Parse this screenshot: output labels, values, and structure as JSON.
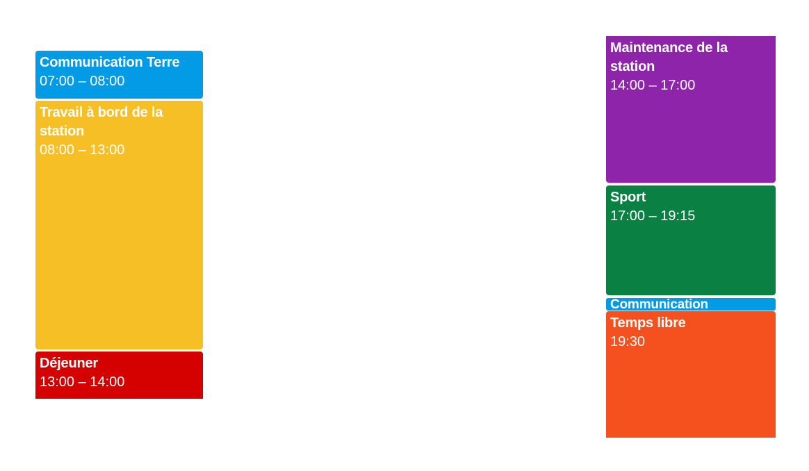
{
  "events": {
    "communication_terre": {
      "title": "Communication Terre",
      "time": "07:00 – 08:00",
      "color": "#039BE5"
    },
    "travail": {
      "title": "Travail à bord de la station",
      "time": "08:00 – 13:00",
      "color": "#F6BF26"
    },
    "dejeuner": {
      "title": "Déjeuner",
      "time": "13:00 – 14:00",
      "color": "#D50000"
    },
    "maintenance": {
      "title": "Maintenance de la station",
      "time": "14:00 – 17:00",
      "color": "#8E24AA"
    },
    "sport": {
      "title": "Sport",
      "time": "17:00 – 19:15",
      "color": "#0B8043"
    },
    "communication": {
      "title": "Communication",
      "color": "#039BE5"
    },
    "temps_libre": {
      "title": "Temps libre",
      "time": "19:30",
      "color": "#F4511E"
    }
  }
}
